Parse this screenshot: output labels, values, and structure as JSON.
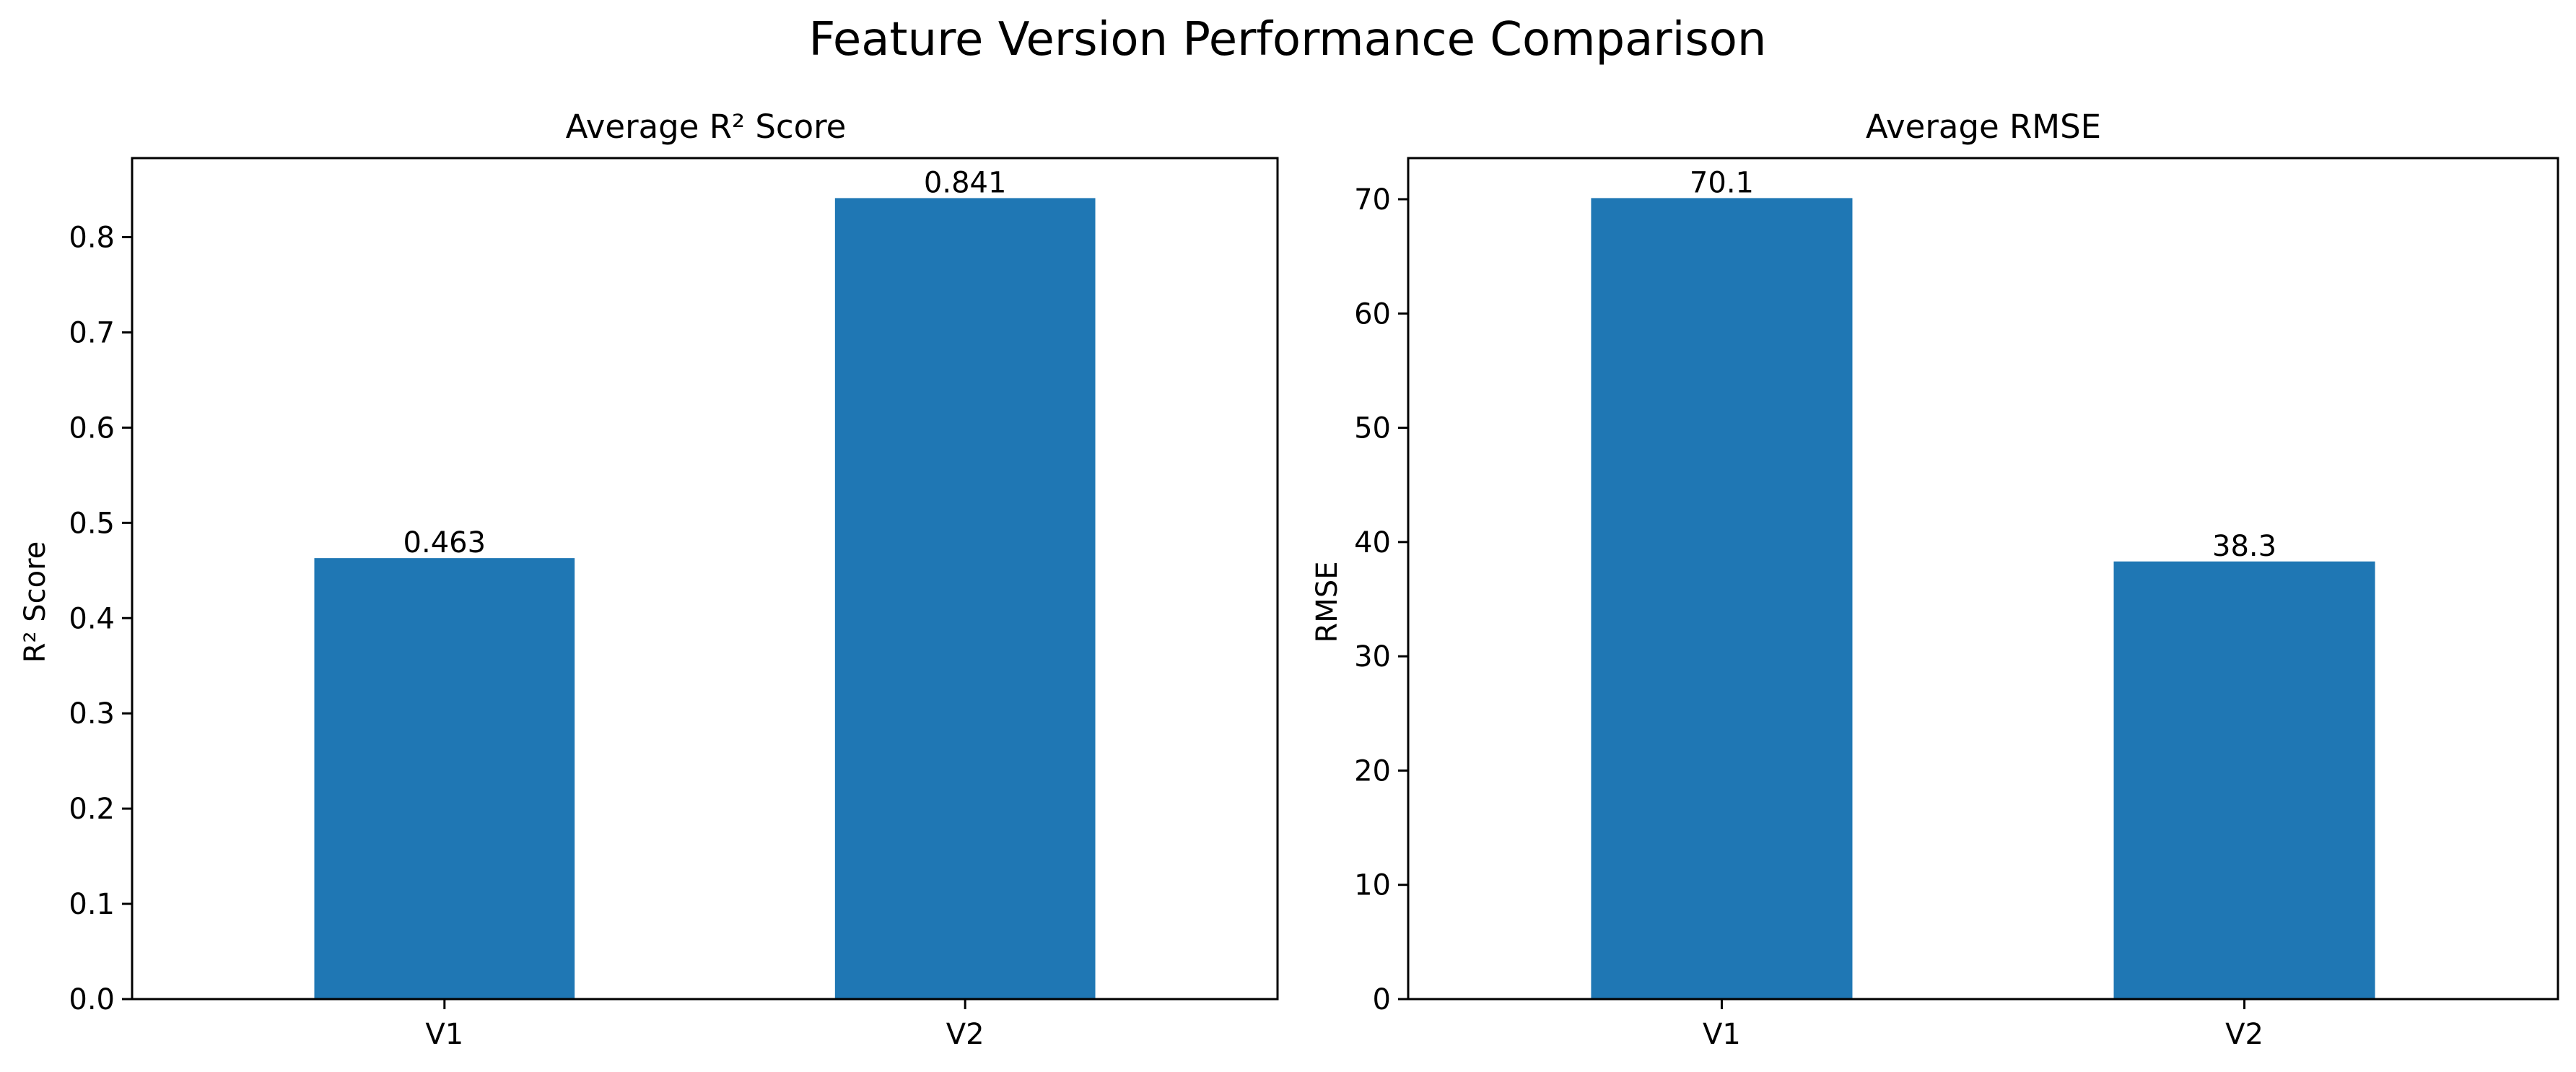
{
  "figure": {
    "title": "Feature Version Performance Comparison"
  },
  "chart_data": [
    {
      "type": "bar",
      "title": "Average R² Score",
      "xlabel": "",
      "ylabel": "R² Score",
      "categories": [
        "V1",
        "V2"
      ],
      "values": [
        0.463,
        0.841
      ],
      "bar_labels": [
        "0.463",
        "0.841"
      ],
      "ylim": [
        0,
        0.883
      ],
      "yticks": [
        0.0,
        0.1,
        0.2,
        0.3,
        0.4,
        0.5,
        0.6,
        0.7,
        0.8
      ],
      "ytick_labels": [
        "0.0",
        "0.1",
        "0.2",
        "0.3",
        "0.4",
        "0.5",
        "0.6",
        "0.7",
        "0.8"
      ],
      "bar_color": "#1f77b4",
      "grid": false,
      "legend": "none"
    },
    {
      "type": "bar",
      "title": "Average RMSE",
      "xlabel": "",
      "ylabel": "RMSE",
      "categories": [
        "V1",
        "V2"
      ],
      "values": [
        70.1,
        38.3
      ],
      "bar_labels": [
        "70.1",
        "38.3"
      ],
      "ylim": [
        0,
        73.6
      ],
      "yticks": [
        0,
        10,
        20,
        30,
        40,
        50,
        60,
        70
      ],
      "ytick_labels": [
        "0",
        "10",
        "20",
        "30",
        "40",
        "50",
        "60",
        "70"
      ],
      "bar_color": "#1f77b4",
      "grid": false,
      "legend": "none"
    }
  ]
}
